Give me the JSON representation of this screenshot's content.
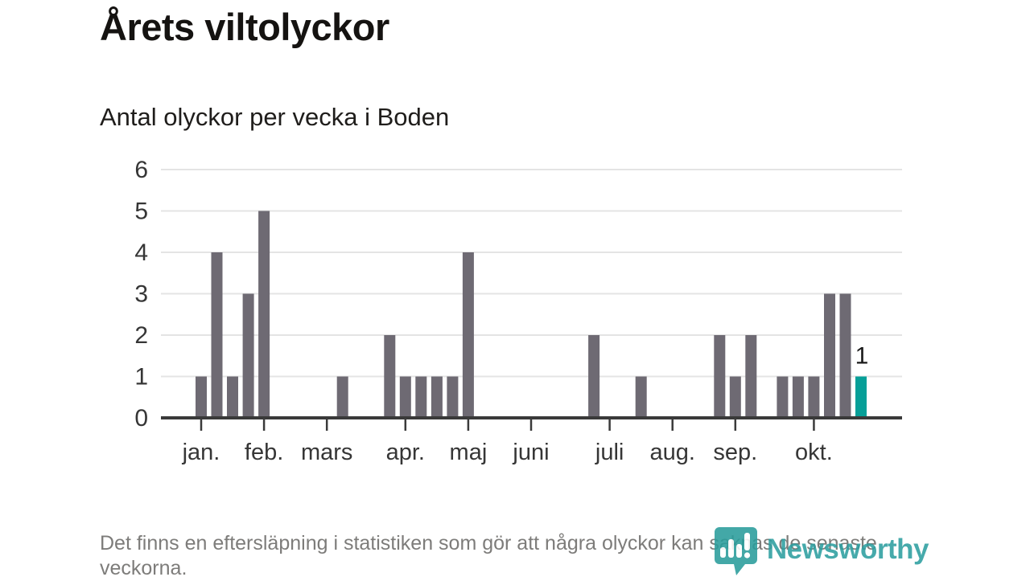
{
  "page": {
    "title": "Årets viltolyckor",
    "subtitle": "Antal olyckor per vecka i Boden",
    "footer_note": "Det finns en eftersläpning i statistiken som gör att några olyckor kan saknas de senaste veckorna.",
    "brand_name": "Newsworthy",
    "brand_icon": "bar-chart-speech-bubble-icon"
  },
  "colors": {
    "bar": "#6e6a73",
    "highlight_bar": "#069f98",
    "axis": "#3a3a3a",
    "grid": "#e4e4e4",
    "axis_label": "#363636",
    "value_label": "#1a1a1a",
    "brand_teal": "#2d9fa0"
  },
  "chart_data": {
    "type": "bar",
    "title": "Årets viltolyckor",
    "subtitle": "Antal olyckor per vecka i Boden",
    "x_unit": "vecka",
    "values": [
      1,
      4,
      1,
      3,
      5,
      0,
      0,
      0,
      0,
      1,
      0,
      0,
      2,
      1,
      1,
      1,
      1,
      4,
      0,
      0,
      0,
      0,
      0,
      0,
      0,
      2,
      0,
      0,
      1,
      0,
      0,
      0,
      0,
      2,
      1,
      2,
      0,
      1,
      1,
      1,
      3,
      3,
      1
    ],
    "highlight_last_index": 42,
    "last_bar_value_label": "1",
    "month_ticks": [
      {
        "label": "jan.",
        "week_index": 0
      },
      {
        "label": "feb.",
        "week_index": 4
      },
      {
        "label": "mars",
        "week_index": 8
      },
      {
        "label": "apr.",
        "week_index": 13
      },
      {
        "label": "maj",
        "week_index": 17
      },
      {
        "label": "juni",
        "week_index": 21
      },
      {
        "label": "juli",
        "week_index": 26
      },
      {
        "label": "aug.",
        "week_index": 30
      },
      {
        "label": "sep.",
        "week_index": 34
      },
      {
        "label": "okt.",
        "week_index": 39
      }
    ],
    "ylim": [
      0,
      6
    ],
    "yticks": [
      0,
      1,
      2,
      3,
      4,
      5,
      6
    ],
    "grid": true,
    "legend": "none"
  }
}
